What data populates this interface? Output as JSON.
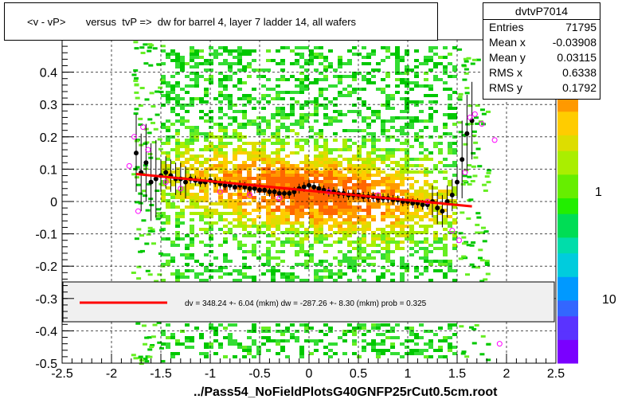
{
  "title": "<v - vP>       versus  tvP =>  dw for barrel 4, layer 7 ladder 14, all wafers",
  "stats": {
    "name": "dvtvP7014",
    "rows": [
      {
        "label": "Entries",
        "value": "71795"
      },
      {
        "label": "Mean x",
        "value": "-0.03908"
      },
      {
        "label": "Mean y",
        "value": "0.03115"
      },
      {
        "label": "RMS x",
        "value": "0.6338"
      },
      {
        "label": "RMS y",
        "value": "0.1792"
      }
    ]
  },
  "xtitle": "../Pass54_NoFieldPlotsG40GNFP25rCut0.5cm.root",
  "legend_text": "dv =  348.24 +-  6.04 (mkm) dw = -287.26 +-  8.30 (mkm) prob = 0.325",
  "colors": {
    "fit": "#ff0000",
    "profile": "#000000",
    "alt_profile": "#ff00ff"
  },
  "chart_data": {
    "type": "heatmap",
    "xlim": [
      -2.5,
      2.5
    ],
    "ylim": [
      -0.5,
      0.5
    ],
    "x_ticks": [
      "-2.5",
      "-2",
      "-1.5",
      "-1",
      "-0.5",
      "0",
      "0.5",
      "1",
      "1.5",
      "2",
      "2.5"
    ],
    "y_ticks": [
      "-0.5",
      "-0.4",
      "-0.3",
      "-0.2",
      "-0.1",
      "0",
      "0.1",
      "0.2",
      "0.3",
      "0.4"
    ],
    "colorbar_labels": [
      "1",
      "10"
    ],
    "fit_line": {
      "x": [
        -1.75,
        1.65
      ],
      "y": [
        0.085,
        -0.015
      ]
    },
    "profile": {
      "x": [
        -1.75,
        -1.7,
        -1.65,
        -1.6,
        -1.55,
        -1.5,
        -1.45,
        -1.4,
        -1.35,
        -1.3,
        -1.25,
        -1.2,
        -1.15,
        -1.1,
        -1.05,
        -1.0,
        -0.95,
        -0.9,
        -0.85,
        -0.8,
        -0.75,
        -0.7,
        -0.65,
        -0.6,
        -0.55,
        -0.5,
        -0.45,
        -0.4,
        -0.35,
        -0.3,
        -0.25,
        -0.2,
        -0.15,
        -0.1,
        -0.05,
        0.0,
        0.05,
        0.1,
        0.15,
        0.2,
        0.25,
        0.3,
        0.35,
        0.4,
        0.45,
        0.5,
        0.55,
        0.6,
        0.65,
        0.7,
        0.75,
        0.8,
        0.85,
        0.9,
        0.95,
        1.0,
        1.05,
        1.1,
        1.15,
        1.2,
        1.25,
        1.3,
        1.35,
        1.4,
        1.45,
        1.5,
        1.55,
        1.6,
        1.65
      ],
      "y": [
        0.15,
        0.09,
        0.12,
        0.06,
        0.07,
        0.08,
        0.09,
        0.08,
        0.07,
        0.07,
        0.06,
        0.07,
        0.065,
        0.06,
        0.06,
        0.065,
        0.06,
        0.055,
        0.05,
        0.05,
        0.045,
        0.05,
        0.045,
        0.04,
        0.04,
        0.035,
        0.035,
        0.03,
        0.03,
        0.025,
        0.025,
        0.025,
        0.03,
        0.04,
        0.045,
        0.05,
        0.045,
        0.04,
        0.035,
        0.03,
        0.03,
        0.025,
        0.025,
        0.02,
        0.02,
        0.02,
        0.015,
        0.015,
        0.015,
        0.01,
        0.01,
        0.01,
        0.005,
        0.005,
        0.0,
        0.0,
        -0.005,
        -0.005,
        -0.01,
        -0.01,
        0.0,
        -0.02,
        -0.03,
        0.0,
        0.02,
        0.06,
        0.13,
        0.21,
        0.25
      ]
    },
    "alt_profile": {
      "x": [
        -1.82,
        -1.77,
        -1.73,
        -1.68,
        -1.63,
        -1.45,
        -1.3,
        -0.9,
        -0.6,
        -0.3,
        0.2,
        0.7,
        1.2,
        1.45,
        1.52,
        1.58,
        1.63,
        1.68,
        1.75,
        1.88,
        1.93
      ],
      "y": [
        0.11,
        0.2,
        -0.03,
        0.23,
        0.16,
        0.06,
        0.04,
        0.03,
        0.02,
        0.01,
        0.03,
        0.02,
        0.0,
        -0.09,
        -0.12,
        0.09,
        0.26,
        0.27,
        0.24,
        0.19,
        -0.44
      ]
    }
  }
}
